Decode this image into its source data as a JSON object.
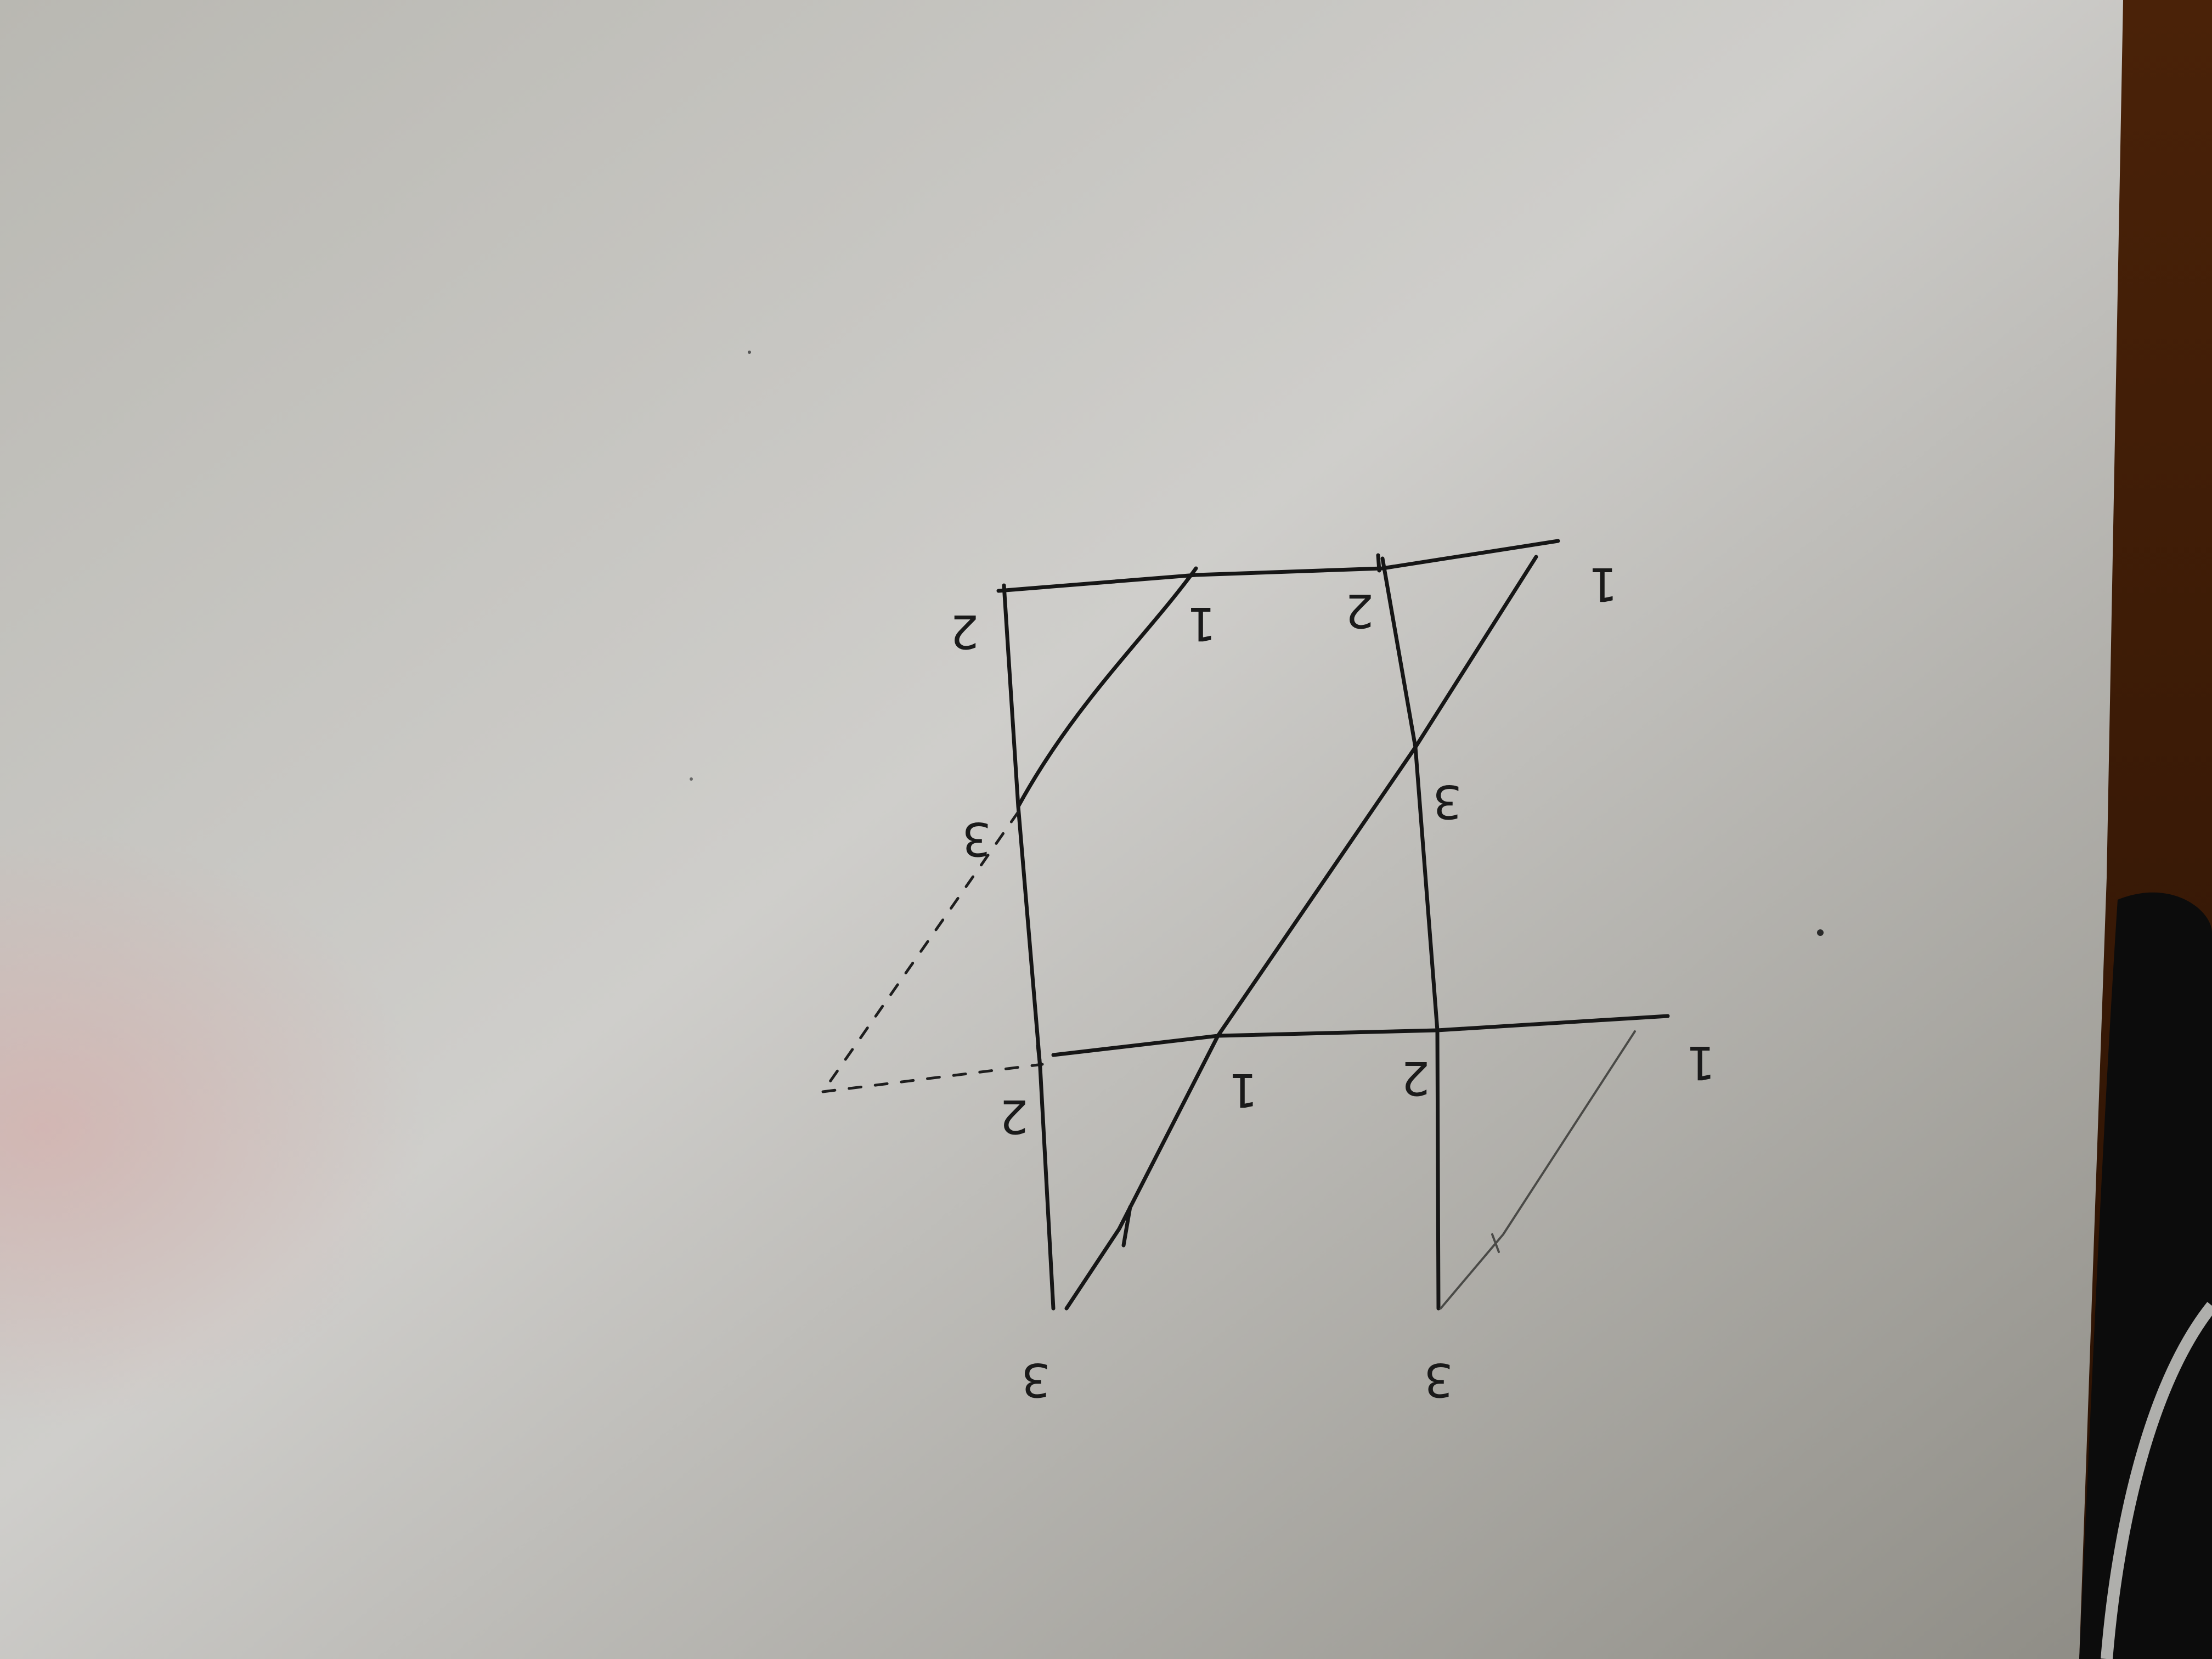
{
  "photo": {
    "colors": {
      "paper": "#b6b5ae",
      "paper_dark": "#8d8b84",
      "ink": "#161616",
      "table_edge": "#3a1c08"
    }
  },
  "diagram": {
    "labels": {
      "top_left": "2",
      "top_mid_left": "1",
      "top_mid_right": "2",
      "top_right": "1",
      "mid_left": "3",
      "mid_right": "3",
      "lower_left": "2",
      "lower_mid_left": "1",
      "lower_mid_right": "2",
      "lower_right": "1",
      "bottom_left": "3",
      "bottom_right": "3"
    }
  }
}
